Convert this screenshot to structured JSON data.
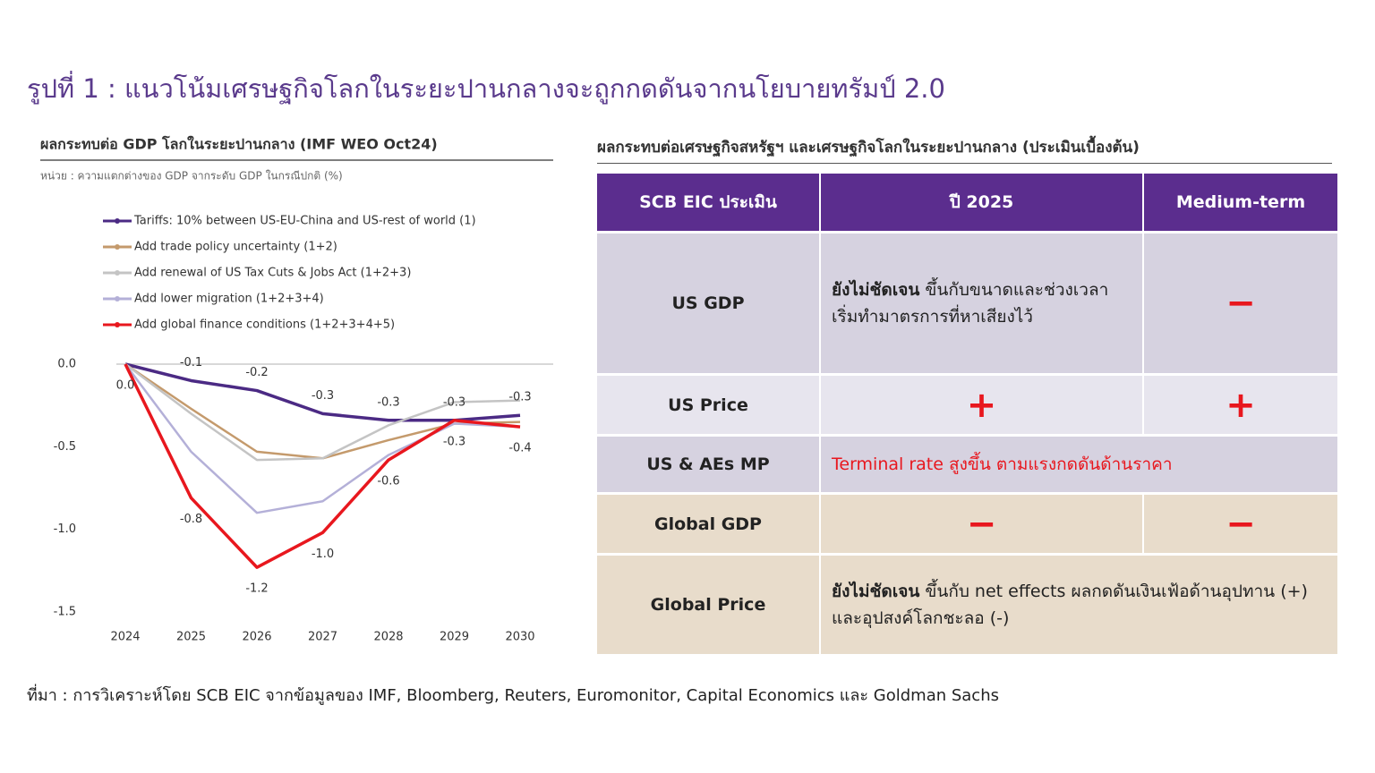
{
  "title": "รูปที่ 1 : แนวโน้มเศรษฐกิจโลกในระยะปานกลางจะถูกกดดันจากนโยบายทรัมป์ 2.0",
  "chart_data": {
    "type": "line",
    "title": "ผลกระทบต่อ GDP โลกในระยะปานกลาง (IMF WEO Oct24)",
    "subtitle": "หน่วย : ความแตกต่างของ GDP จากระดับ GDP ในกรณีปกติ (%)",
    "categories": [
      "2024",
      "2025",
      "2026",
      "2027",
      "2028",
      "2029",
      "2030"
    ],
    "ylim": [
      -1.5,
      0
    ],
    "yticks": [
      {
        "value": 0,
        "label": "0.0"
      },
      -0.5,
      {
        "value": -1,
        "label": "-1.0"
      },
      -1.5
    ],
    "zero_line": true,
    "legend": "top-left",
    "series": [
      {
        "name": "Tariffs: 10% between US-EU-China and US-rest of world (1)",
        "color": "#4b2a84",
        "values": [
          0,
          -0.1,
          -0.16,
          -0.3,
          -0.34,
          -0.34,
          -0.31
        ],
        "value_labels": [
          null,
          "-0.1",
          "-0.2",
          "-0.3",
          "-0.3",
          "-0.3",
          "-0.3"
        ]
      },
      {
        "name": "Add trade policy uncertainty (1+2)",
        "color": "#c49a6c",
        "values": [
          0,
          -0.27,
          -0.53,
          -0.57,
          -0.46,
          -0.36,
          -0.35
        ]
      },
      {
        "name": "Add renewal of US Tax Cuts & Jobs Act (1+2+3)",
        "color": "#c4c4c4",
        "values": [
          0,
          -0.3,
          -0.58,
          -0.57,
          -0.37,
          -0.23,
          -0.22
        ]
      },
      {
        "name": "Add lower migration (1+2+3+4)",
        "color": "#b4b0d8",
        "values": [
          0,
          -0.53,
          -0.9,
          -0.83,
          -0.55,
          -0.36,
          -0.38
        ]
      },
      {
        "name": "Add global finance conditions (1+2+3+4+5)",
        "color": "#e8171e",
        "values": [
          0,
          -0.81,
          -1.23,
          -1.02,
          -0.58,
          -0.34,
          -0.38
        ],
        "value_labels": [
          "0.0",
          "-0.8",
          "-1.2",
          "-1.0",
          "-0.6",
          "-0.3",
          "-0.4"
        ]
      }
    ]
  },
  "table": {
    "title": "ผลกระทบต่อเศรษฐกิจสหรัฐฯ และเศรษฐกิจโลกในระยะปานกลาง (ประเมินเบื้องต้น)",
    "header": [
      "SCB EIC ประเมิน",
      "ปี 2025",
      "Medium-term"
    ],
    "rows": [
      {
        "label": "US GDP",
        "cells": [
          {
            "bold": "ยังไม่ชัดเจน",
            "text": "ขึ้นกับขนาดและช่วงเวลาเริ่มทำมาตรการที่หาเสียงไว้"
          },
          "−"
        ]
      },
      {
        "label": "US Price",
        "cells": [
          "+",
          "+"
        ]
      },
      {
        "label": "US & AEs MP",
        "cells": [
          {
            "text": "Terminal rate สูงขึ้น ตามแรงกดดันด้านราคา",
            "color": "#e8171e"
          }
        ]
      },
      {
        "label": "Global GDP",
        "cells": [
          "−",
          "−"
        ]
      },
      {
        "label": "Global Price",
        "cells": [
          {
            "bold": "ยังไม่ชัดเจน",
            "text": "ขึ้นกับ net effects ผลกดดันเงินเฟ้อด้านอุปทาน (+) และอุปสงค์โลกชะลอ (-)"
          }
        ]
      }
    ]
  },
  "source": "ที่มา : การวิเคราะห์โดย SCB EIC จากข้อมูลของ IMF, Bloomberg, Reuters, Euromonitor, Capital Economics และ Goldman Sachs"
}
